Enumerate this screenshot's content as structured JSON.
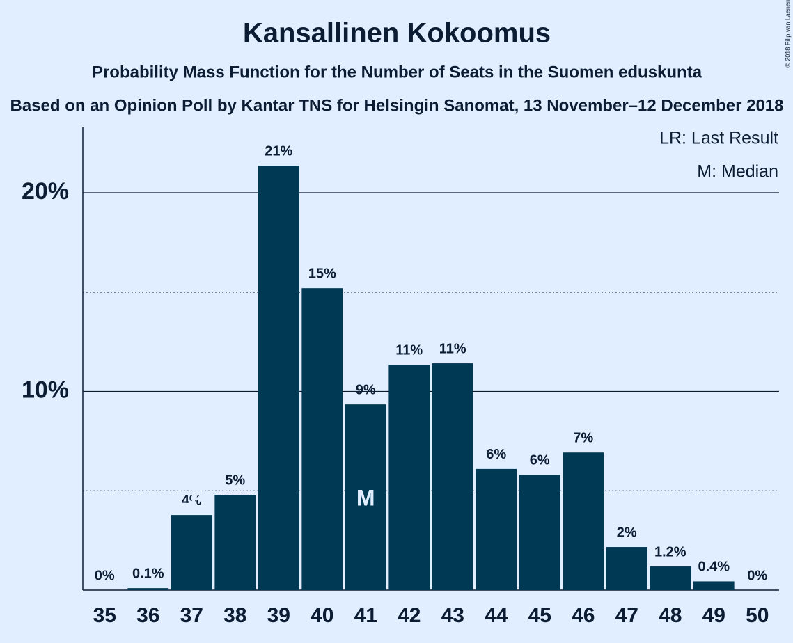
{
  "chart_data": {
    "type": "bar",
    "title": "Kansallinen Kokoomus",
    "subtitle": "Probability Mass Function for the Number of Seats in the Suomen eduskunta",
    "subtitle2": "Based on an Opinion Poll by Kantar TNS for Helsingin Sanomat, 13 November–12 December 2018",
    "categories": [
      "35",
      "36",
      "37",
      "38",
      "39",
      "40",
      "41",
      "42",
      "43",
      "44",
      "45",
      "46",
      "47",
      "48",
      "49",
      "50"
    ],
    "values": [
      0,
      0.1,
      3.78,
      4.8,
      21.37,
      15.2,
      9.35,
      11.35,
      11.42,
      6.1,
      5.8,
      6.93,
      2.17,
      1.19,
      0.44,
      0
    ],
    "value_labels": [
      "0%",
      "0.1%",
      "4%",
      "5%",
      "21%",
      "15%",
      "9%",
      "11%",
      "11%",
      "6%",
      "6%",
      "7%",
      "2%",
      "1.2%",
      "0.4%",
      "0%"
    ],
    "color": "#003953",
    "ylim": [
      0,
      23.3
    ],
    "yticks": [
      {
        "value": 10,
        "label": "10%"
      },
      {
        "value": 20,
        "label": "20%"
      }
    ],
    "minor_yticks": [
      5,
      15
    ],
    "grid": true,
    "annotations": [
      {
        "category": 2,
        "text": "LR"
      },
      {
        "category": 6,
        "text": "M"
      }
    ],
    "legend": [
      "LR: Last Result",
      "M: Median"
    ],
    "copyright": "© 2018 Filip van Laenen"
  }
}
